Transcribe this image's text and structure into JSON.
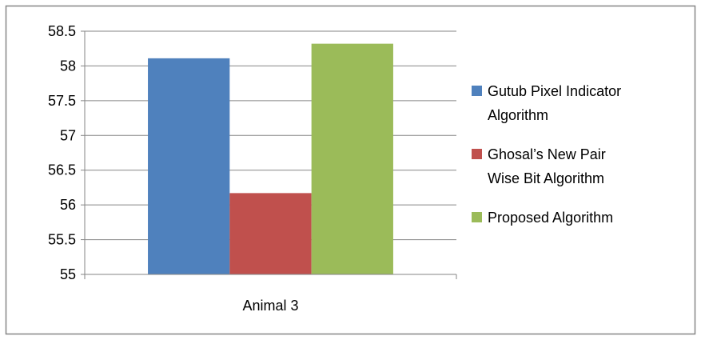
{
  "chart_data": {
    "type": "bar",
    "categories": [
      "Animal 3"
    ],
    "series": [
      {
        "name": "Gutub Pixel Indicator Algorithm",
        "legend_lines": [
          "Gutub Pixel Indicator",
          "Algorithm"
        ],
        "values": [
          58.11
        ],
        "color": "#4F81BD"
      },
      {
        "name": "Ghosal’s  New Pair Wise Bit Algorithm",
        "legend_lines": [
          "Ghosal’s  New Pair",
          "Wise Bit Algorithm"
        ],
        "values": [
          56.17
        ],
        "color": "#C0504D"
      },
      {
        "name": "Proposed Algorithm",
        "legend_lines": [
          "Proposed Algorithm"
        ],
        "values": [
          58.32
        ],
        "color": "#9BBB59"
      }
    ],
    "y_ticks": [
      "55",
      "55.5",
      "56",
      "56.5",
      "57",
      "57.5",
      "58",
      "58.5"
    ],
    "ylim": [
      55,
      58.5
    ],
    "title": "",
    "xlabel": "",
    "ylabel": "",
    "grid": true,
    "legend_position": "right"
  }
}
